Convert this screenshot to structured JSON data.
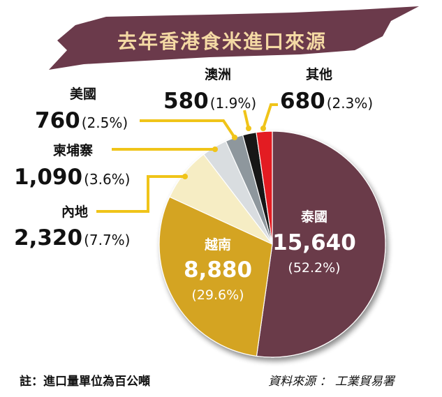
{
  "title": "去年香港食米進口來源",
  "note": "註：進口量單位為百公噸",
  "source": "資料來源 ： 工業貿易署",
  "colors": {
    "banner": "#6b3a4b",
    "title_text": "#f4d9a4",
    "leader": "#f0c419"
  },
  "chart_data": {
    "type": "pie",
    "unit": "百公噸",
    "slices": [
      {
        "label": "泰國",
        "value": 15640,
        "value_text": "15,640",
        "percent": 52.2,
        "percent_text": "(52.2%)",
        "color": "#6a3a48"
      },
      {
        "label": "越南",
        "value": 8880,
        "value_text": "8,880",
        "percent": 29.6,
        "percent_text": "(29.6%)",
        "color": "#d4a424"
      },
      {
        "label": "內地",
        "value": 2320,
        "value_text": "2,320",
        "percent": 7.7,
        "percent_text": "(7.7%)",
        "color": "#f6edc4"
      },
      {
        "label": "柬埔寨",
        "value": 1090,
        "value_text": "1,090",
        "percent": 3.6,
        "percent_text": "(3.6%)",
        "color": "#d9dde0"
      },
      {
        "label": "美國",
        "value": 760,
        "value_text": "760",
        "percent": 2.5,
        "percent_text": "(2.5%)",
        "color": "#8e979d"
      },
      {
        "label": "澳洲",
        "value": 580,
        "value_text": "580",
        "percent": 1.9,
        "percent_text": "(1.9%)",
        "color": "#161616"
      },
      {
        "label": "其他",
        "value": 680,
        "value_text": "680",
        "percent": 2.3,
        "percent_text": "(2.3%)",
        "color": "#e31e24"
      }
    ]
  }
}
